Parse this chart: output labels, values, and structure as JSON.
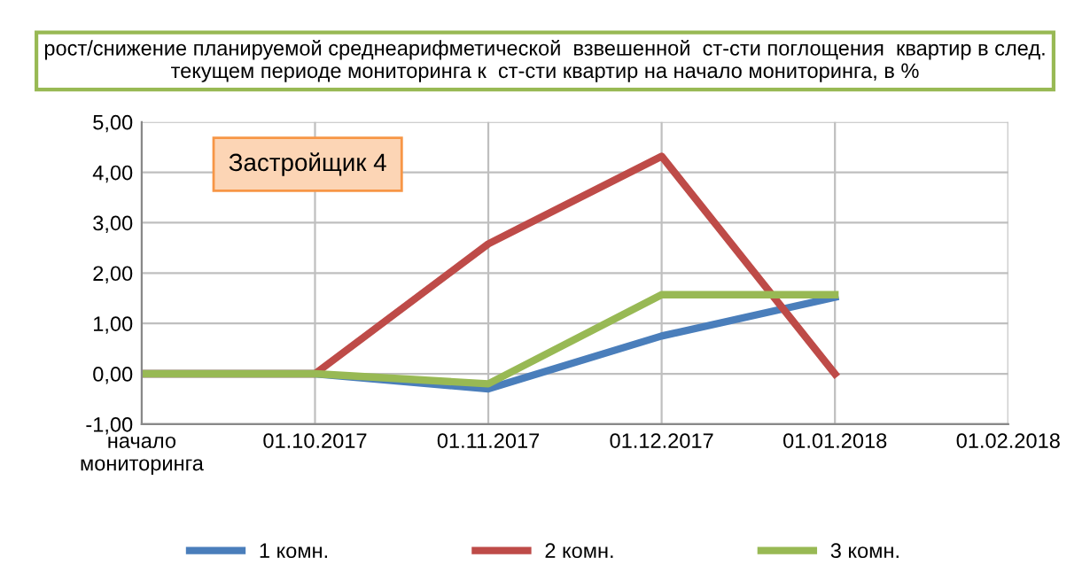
{
  "chart_data": {
    "type": "line",
    "title": "рост/снижение планируемой среднеарифметической  взвешенной  ст-сти поглощения  квартир в след. текущем периоде мониторинга к  ст-сти квартир на начало мониторинга, в %",
    "annotations": [
      "Застройщик 4"
    ],
    "categories": [
      "начало\nмониторинга",
      "01.10.2017",
      "01.11.2017",
      "01.12.2017",
      "01.01.2018",
      "01.02.2018"
    ],
    "series": [
      {
        "name": "1 комн.",
        "color": "#4a7ebb",
        "values": [
          0,
          0,
          -0.3,
          0.75,
          1.52,
          null
        ]
      },
      {
        "name": "2 комн.",
        "color": "#be4b48",
        "values": [
          0,
          0,
          2.58,
          4.32,
          0,
          null
        ]
      },
      {
        "name": "3 комн.",
        "color": "#98b954",
        "values": [
          0,
          0,
          -0.2,
          1.57,
          1.57,
          null
        ]
      }
    ],
    "ylim": [
      -1,
      5
    ],
    "yticks": [
      {
        "value": -1,
        "label": "-1,00"
      },
      {
        "value": 0,
        "label": "0,00"
      },
      {
        "value": 1,
        "label": "1,00"
      },
      {
        "value": 2,
        "label": "2,00"
      },
      {
        "value": 3,
        "label": "3,00"
      },
      {
        "value": 4,
        "label": "4,00"
      },
      {
        "value": 5,
        "label": "5,00"
      }
    ],
    "grid": true,
    "legend": "bottom",
    "marker": "none",
    "line_style": "solid"
  }
}
